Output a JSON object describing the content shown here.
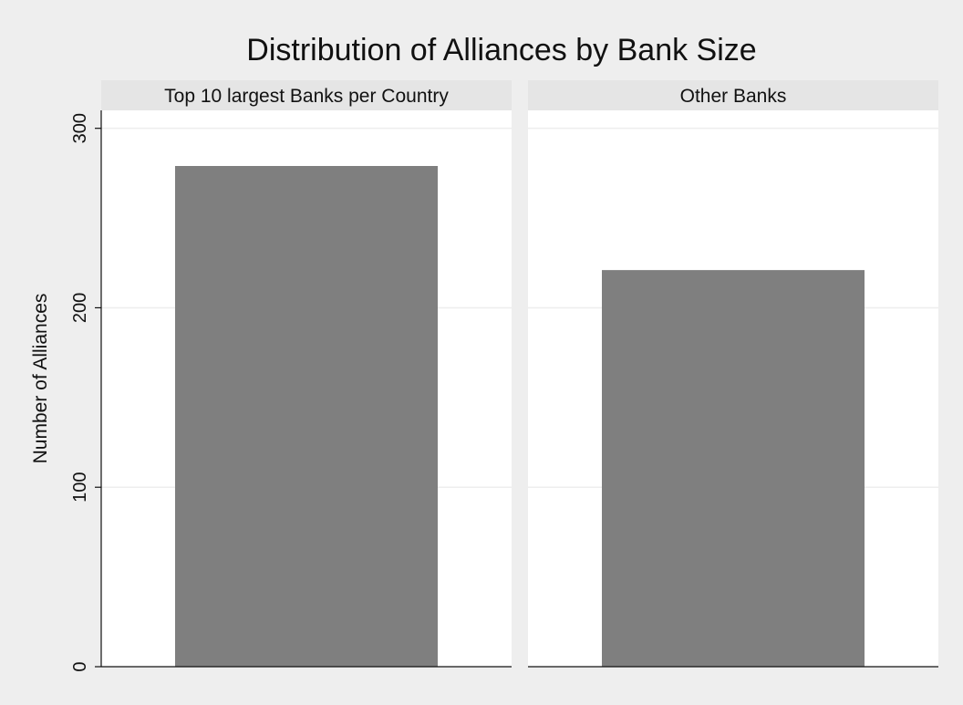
{
  "chart_data": {
    "type": "bar",
    "title": "Distribution of Alliances by Bank Size",
    "ylabel": "Number of Alliances",
    "xlabel": "",
    "ylim": [
      0,
      310
    ],
    "yticks": [
      0,
      100,
      200,
      300
    ],
    "grid": true,
    "panels": [
      {
        "label": "Top 10 largest Banks per Country",
        "value": 279
      },
      {
        "label": "Other Banks",
        "value": 221
      }
    ],
    "colors": {
      "background": "#eeeeee",
      "plot_background": "#ffffff",
      "panel_header": "#e5e5e5",
      "bar": "#7f7f7f",
      "grid": "#eeeeee",
      "axis": "#111111"
    }
  }
}
